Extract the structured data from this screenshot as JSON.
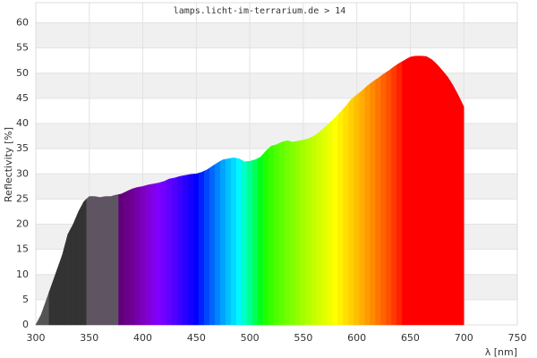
{
  "chart_data": {
    "type": "spectrum_area",
    "title": "lamps.licht-im-terrarium.de > 14",
    "x_label": "λ [nm]",
    "y_label": "Reflectivity [%]",
    "x": [
      300,
      305,
      310,
      315,
      320,
      325,
      330,
      335,
      340,
      345,
      350,
      355,
      360,
      365,
      370,
      375,
      380,
      385,
      390,
      395,
      400,
      405,
      410,
      415,
      420,
      425,
      430,
      435,
      440,
      445,
      450,
      455,
      460,
      465,
      470,
      475,
      480,
      485,
      490,
      495,
      500,
      505,
      510,
      515,
      520,
      525,
      530,
      535,
      540,
      545,
      550,
      555,
      560,
      565,
      570,
      575,
      580,
      585,
      590,
      595,
      600,
      605,
      610,
      615,
      620,
      625,
      630,
      635,
      640,
      645,
      650,
      655,
      660,
      665,
      670,
      675,
      680,
      685,
      690,
      695,
      700
    ],
    "values": [
      0,
      2,
      5,
      8,
      11,
      14,
      18,
      20,
      22.5,
      24.5,
      25.5,
      25.5,
      25.3,
      25.5,
      25.5,
      25.8,
      26,
      26.5,
      27,
      27.3,
      27.5,
      27.8,
      28,
      28.2,
      28.5,
      29,
      29.2,
      29.5,
      29.7,
      29.9,
      30,
      30.3,
      30.8,
      31.5,
      32.2,
      32.8,
      33,
      33.2,
      33,
      32.4,
      32.5,
      32.8,
      33.3,
      34.5,
      35.5,
      35.8,
      36.3,
      36.6,
      36.3,
      36.5,
      36.7,
      37,
      37.5,
      38.3,
      39.2,
      40.2,
      41.2,
      42.3,
      43.5,
      44.8,
      45.7,
      46.5,
      47.5,
      48.3,
      49,
      49.8,
      50.5,
      51.3,
      52,
      52.6,
      53.2,
      53.4,
      53.4,
      53.3,
      52.7,
      51.7,
      50.5,
      49.2,
      47.5,
      45.5,
      43.3
    ],
    "colors": [
      "#555555",
      "#555555",
      "#555555",
      "#333333",
      "#333333",
      "#333333",
      "#333333",
      "#333333",
      "#333333",
      "#333333",
      "#5f5462",
      "#5f5462",
      "#5f5462",
      "#5f5462",
      "#5f5462",
      "#5f5462",
      "#61007a",
      "#690087",
      "#700095",
      "#7500a8",
      "#7c00bd",
      "#8000d4",
      "#8200ea",
      "#7f00ff",
      "#7000ff",
      "#6000ff",
      "#4f00ff",
      "#3c00ff",
      "#2900ff",
      "#1500ff",
      "#0000ff",
      "#0022ff",
      "#0046ff",
      "#0066ff",
      "#0084ff",
      "#00a3ff",
      "#00c0ff",
      "#00dbff",
      "#00f6ff",
      "#00ffc9",
      "#00ff92",
      "#00ff59",
      "#00ff1d",
      "#1fff00",
      "#36ff00",
      "#4eff00",
      "#5eff00",
      "#70ff00",
      "#81ff00",
      "#92ff00",
      "#a3ff00",
      "#b3ff00",
      "#c3ff00",
      "#d3ff00",
      "#e1ff00",
      "#f0ff00",
      "#ffff00",
      "#ffef00",
      "#ffdf00",
      "#ffcf00",
      "#ffbe00",
      "#ffad00",
      "#ff9b00",
      "#ff8900",
      "#ff7700",
      "#ff6300",
      "#ff4f00",
      "#ff3900",
      "#ff2100",
      "#ff0000",
      "#ff0000",
      "#ff0000",
      "#ff0000",
      "#ff0000",
      "#ff0000",
      "#ff0000",
      "#ff0000",
      "#ff0000",
      "#ff0000",
      "#ff0000",
      "#ff0000"
    ],
    "xlim": [
      300,
      750
    ],
    "ylim": [
      0,
      64
    ],
    "xticks": [
      300,
      350,
      400,
      450,
      500,
      550,
      600,
      650,
      700,
      750
    ],
    "yticks": [
      0,
      5,
      10,
      15,
      20,
      25,
      30,
      35,
      40,
      45,
      50,
      55,
      60
    ],
    "grid": true
  }
}
